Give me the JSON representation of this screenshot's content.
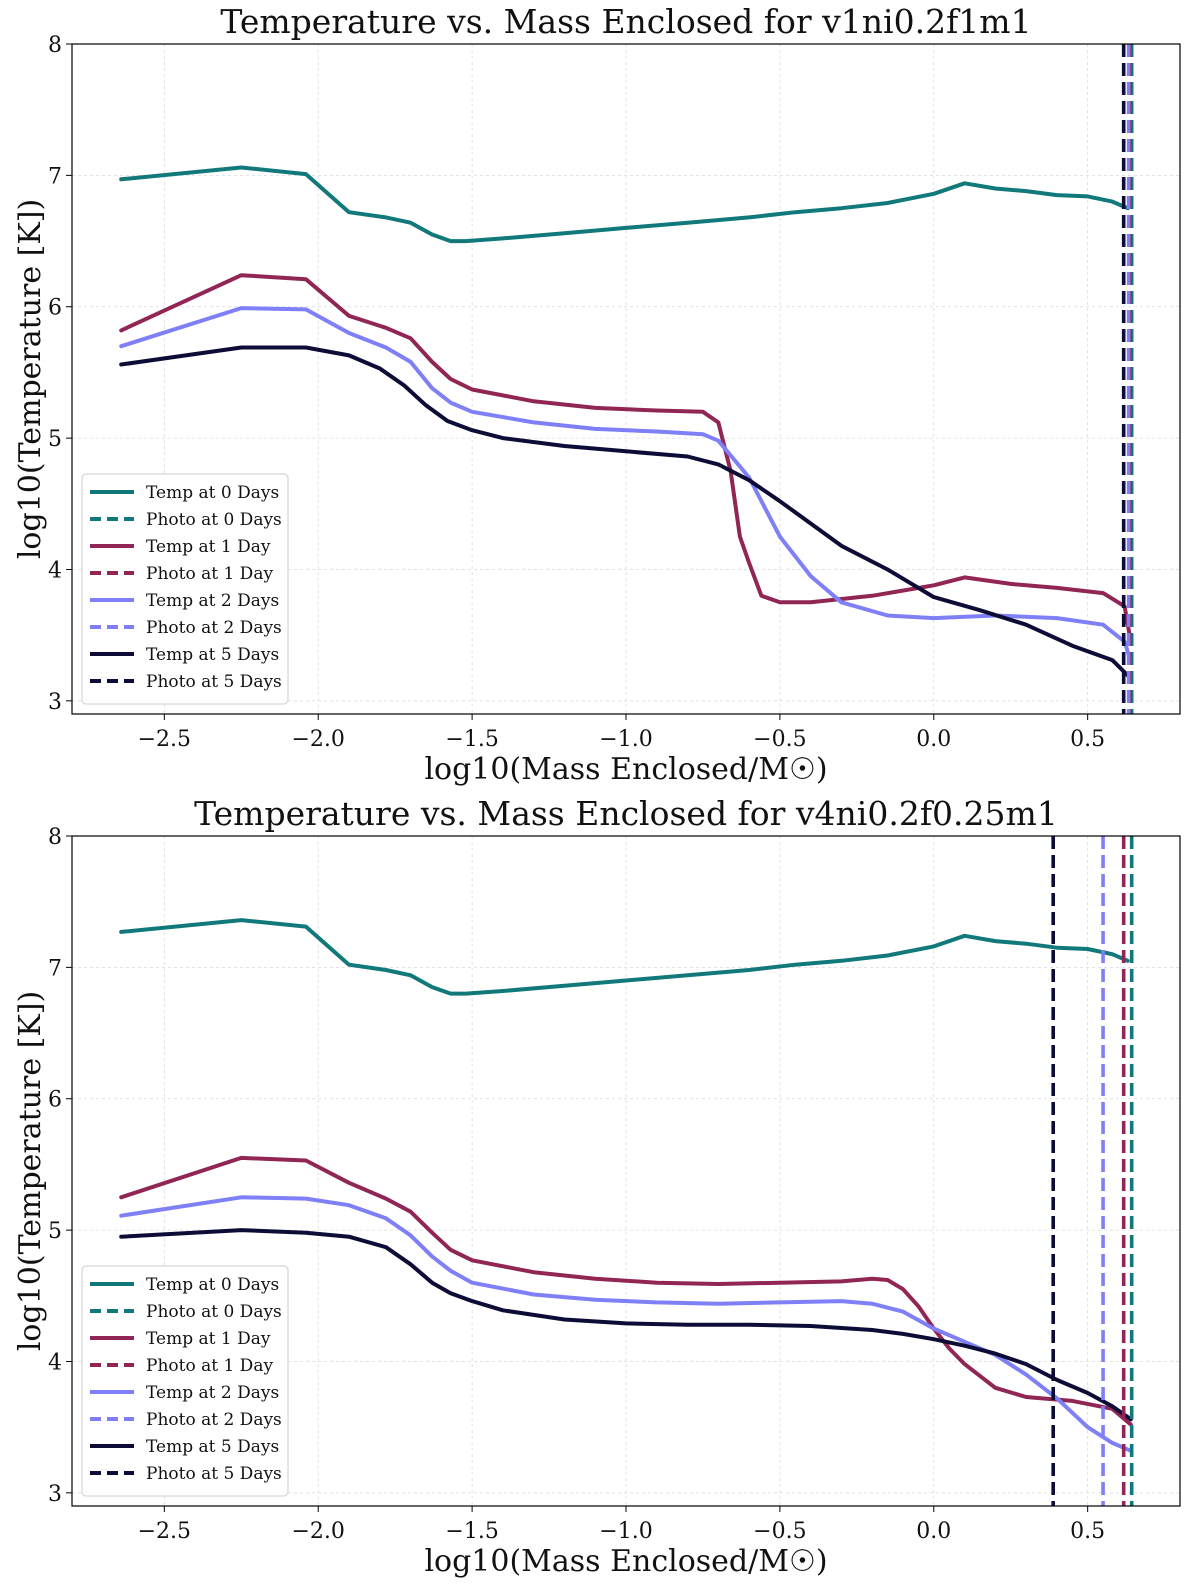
{
  "chart_data": [
    {
      "type": "line",
      "title": "Temperature vs. Mass Enclosed for v1ni0.2f1m1",
      "xlabel": "log10(Mass Enclosed/M☉)",
      "ylabel": "log10(Temperature [K])",
      "xlim": [
        -2.8,
        0.8
      ],
      "ylim": [
        2.9,
        8.0
      ],
      "xticks": [
        -2.5,
        -2.0,
        -1.5,
        -1.0,
        -0.5,
        0.0,
        0.5
      ],
      "xtick_labels": [
        "−2.5",
        "−2.0",
        "−1.5",
        "−1.0",
        "−0.5",
        "0.0",
        "0.5"
      ],
      "yticks": [
        3,
        4,
        5,
        6,
        7,
        8
      ],
      "ytick_labels": [
        "3",
        "4",
        "5",
        "6",
        "7",
        "8"
      ],
      "grid": true,
      "legend_position": "lower-left",
      "legend": [
        "Temp at 0 Days",
        "Photo at 0 Days",
        "Temp at 1 Day",
        "Photo at 1 Day",
        "Temp at 2 Days",
        "Photo at 2 Days",
        "Temp at 5 Days",
        "Photo at 5 Days"
      ],
      "series": [
        {
          "name": "Temp at 0 Days",
          "color": "#12797a",
          "style": "solid",
          "x": [
            -2.64,
            -2.25,
            -2.04,
            -1.9,
            -1.78,
            -1.7,
            -1.63,
            -1.57,
            -1.52,
            -1.4,
            -1.2,
            -1.0,
            -0.8,
            -0.6,
            -0.45,
            -0.3,
            -0.15,
            0.0,
            0.1,
            0.2,
            0.3,
            0.4,
            0.5,
            0.58,
            0.63
          ],
          "y": [
            6.97,
            7.06,
            7.01,
            6.72,
            6.68,
            6.64,
            6.55,
            6.5,
            6.5,
            6.52,
            6.56,
            6.6,
            6.64,
            6.68,
            6.72,
            6.75,
            6.79,
            6.86,
            6.94,
            6.9,
            6.88,
            6.85,
            6.84,
            6.8,
            6.75
          ]
        },
        {
          "name": "Temp at 1 Day",
          "color": "#912655",
          "style": "solid",
          "x": [
            -2.64,
            -2.25,
            -2.04,
            -1.9,
            -1.78,
            -1.7,
            -1.63,
            -1.57,
            -1.5,
            -1.3,
            -1.1,
            -0.9,
            -0.75,
            -0.7,
            -0.66,
            -0.63,
            -0.6,
            -0.56,
            -0.5,
            -0.4,
            -0.2,
            0.0,
            0.1,
            0.25,
            0.4,
            0.55,
            0.62,
            0.64
          ],
          "y": [
            5.82,
            6.24,
            6.21,
            5.93,
            5.84,
            5.76,
            5.58,
            5.45,
            5.37,
            5.28,
            5.23,
            5.21,
            5.2,
            5.12,
            4.75,
            4.25,
            4.05,
            3.8,
            3.75,
            3.75,
            3.8,
            3.88,
            3.94,
            3.89,
            3.86,
            3.82,
            3.72,
            3.45
          ]
        },
        {
          "name": "Temp at 2 Days",
          "color": "#7f7ff7",
          "style": "solid",
          "x": [
            -2.64,
            -2.25,
            -2.04,
            -1.9,
            -1.78,
            -1.7,
            -1.63,
            -1.57,
            -1.5,
            -1.3,
            -1.1,
            -0.9,
            -0.75,
            -0.7,
            -0.6,
            -0.5,
            -0.4,
            -0.3,
            -0.15,
            0.0,
            0.2,
            0.4,
            0.55,
            0.62,
            0.64
          ],
          "y": [
            5.7,
            5.99,
            5.98,
            5.8,
            5.69,
            5.58,
            5.38,
            5.27,
            5.2,
            5.12,
            5.07,
            5.05,
            5.03,
            4.98,
            4.7,
            4.25,
            3.95,
            3.75,
            3.65,
            3.63,
            3.65,
            3.63,
            3.58,
            3.45,
            3.3
          ]
        },
        {
          "name": "Temp at 5 Days",
          "color": "#0c0c36",
          "style": "solid",
          "x": [
            -2.64,
            -2.25,
            -2.04,
            -1.9,
            -1.8,
            -1.72,
            -1.65,
            -1.58,
            -1.5,
            -1.4,
            -1.2,
            -1.0,
            -0.8,
            -0.7,
            -0.6,
            -0.5,
            -0.4,
            -0.3,
            -0.15,
            0.0,
            0.15,
            0.3,
            0.45,
            0.58,
            0.64
          ],
          "y": [
            5.56,
            5.69,
            5.69,
            5.63,
            5.53,
            5.4,
            5.25,
            5.13,
            5.06,
            5.0,
            4.94,
            4.9,
            4.86,
            4.8,
            4.68,
            4.52,
            4.35,
            4.18,
            4.0,
            3.79,
            3.69,
            3.58,
            3.42,
            3.31,
            3.17
          ]
        }
      ],
      "vlines": [
        {
          "name": "Photo at 0 Days",
          "color": "#12797a",
          "style": "dashed",
          "x": 0.643
        },
        {
          "name": "Photo at 1 Day",
          "color": "#912655",
          "style": "dashed",
          "x": 0.636
        },
        {
          "name": "Photo at 2 Days",
          "color": "#7f7ff7",
          "style": "dashed",
          "x": 0.633
        },
        {
          "name": "Photo at 5 Days",
          "color": "#0c0c36",
          "style": "dashed",
          "x": 0.617
        }
      ]
    },
    {
      "type": "line",
      "title": "Temperature vs. Mass Enclosed for v4ni0.2f0.25m1",
      "xlabel": "log10(Mass Enclosed/M☉)",
      "ylabel": "log10(Temperature [K])",
      "xlim": [
        -2.8,
        0.8
      ],
      "ylim": [
        2.9,
        8.0
      ],
      "xticks": [
        -2.5,
        -2.0,
        -1.5,
        -1.0,
        -0.5,
        0.0,
        0.5
      ],
      "xtick_labels": [
        "−2.5",
        "−2.0",
        "−1.5",
        "−1.0",
        "−0.5",
        "0.0",
        "0.5"
      ],
      "yticks": [
        3,
        4,
        5,
        6,
        7,
        8
      ],
      "ytick_labels": [
        "3",
        "4",
        "5",
        "6",
        "7",
        "8"
      ],
      "grid": true,
      "legend_position": "lower-left",
      "legend": [
        "Temp at 0 Days",
        "Photo at 0 Days",
        "Temp at 1 Day",
        "Photo at 1 Day",
        "Temp at 2 Days",
        "Photo at 2 Days",
        "Temp at 5 Days",
        "Photo at 5 Days"
      ],
      "series": [
        {
          "name": "Temp at 0 Days",
          "color": "#12797a",
          "style": "solid",
          "x": [
            -2.64,
            -2.25,
            -2.04,
            -1.9,
            -1.78,
            -1.7,
            -1.63,
            -1.57,
            -1.52,
            -1.4,
            -1.2,
            -1.0,
            -0.8,
            -0.6,
            -0.45,
            -0.3,
            -0.15,
            0.0,
            0.1,
            0.2,
            0.3,
            0.4,
            0.5,
            0.58,
            0.63
          ],
          "y": [
            7.27,
            7.36,
            7.31,
            7.02,
            6.98,
            6.94,
            6.85,
            6.8,
            6.8,
            6.82,
            6.86,
            6.9,
            6.94,
            6.98,
            7.02,
            7.05,
            7.09,
            7.16,
            7.24,
            7.2,
            7.18,
            7.15,
            7.14,
            7.1,
            7.05
          ]
        },
        {
          "name": "Temp at 1 Day",
          "color": "#912655",
          "style": "solid",
          "x": [
            -2.64,
            -2.25,
            -2.04,
            -1.9,
            -1.78,
            -1.7,
            -1.63,
            -1.57,
            -1.5,
            -1.3,
            -1.1,
            -0.9,
            -0.7,
            -0.5,
            -0.3,
            -0.2,
            -0.15,
            -0.1,
            -0.05,
            0.0,
            0.05,
            0.1,
            0.2,
            0.3,
            0.45,
            0.58,
            0.64
          ],
          "y": [
            5.25,
            5.55,
            5.53,
            5.36,
            5.24,
            5.14,
            4.98,
            4.85,
            4.77,
            4.68,
            4.63,
            4.6,
            4.59,
            4.6,
            4.61,
            4.63,
            4.62,
            4.55,
            4.42,
            4.25,
            4.1,
            3.98,
            3.8,
            3.73,
            3.7,
            3.64,
            3.52
          ]
        },
        {
          "name": "Temp at 2 Days",
          "color": "#7f7ff7",
          "style": "solid",
          "x": [
            -2.64,
            -2.25,
            -2.04,
            -1.9,
            -1.78,
            -1.7,
            -1.63,
            -1.57,
            -1.5,
            -1.3,
            -1.1,
            -0.9,
            -0.7,
            -0.5,
            -0.3,
            -0.2,
            -0.1,
            0.0,
            0.1,
            0.2,
            0.3,
            0.4,
            0.5,
            0.58,
            0.64
          ],
          "y": [
            5.11,
            5.25,
            5.24,
            5.19,
            5.09,
            4.96,
            4.8,
            4.69,
            4.6,
            4.51,
            4.47,
            4.45,
            4.44,
            4.45,
            4.46,
            4.44,
            4.38,
            4.25,
            4.15,
            4.05,
            3.9,
            3.72,
            3.5,
            3.38,
            3.32
          ]
        },
        {
          "name": "Temp at 5 Days",
          "color": "#0c0c36",
          "style": "solid",
          "x": [
            -2.64,
            -2.25,
            -2.04,
            -1.9,
            -1.78,
            -1.7,
            -1.63,
            -1.57,
            -1.5,
            -1.4,
            -1.2,
            -1.0,
            -0.8,
            -0.6,
            -0.4,
            -0.2,
            -0.1,
            0.0,
            0.1,
            0.2,
            0.3,
            0.4,
            0.5,
            0.58,
            0.64
          ],
          "y": [
            4.95,
            5.0,
            4.98,
            4.95,
            4.87,
            4.74,
            4.6,
            4.52,
            4.46,
            4.39,
            4.32,
            4.29,
            4.28,
            4.28,
            4.27,
            4.24,
            4.21,
            4.17,
            4.12,
            4.06,
            3.98,
            3.86,
            3.76,
            3.66,
            3.56
          ]
        }
      ],
      "vlines": [
        {
          "name": "Photo at 0 Days",
          "color": "#12797a",
          "style": "dashed",
          "x": 0.643
        },
        {
          "name": "Photo at 1 Day",
          "color": "#912655",
          "style": "dashed",
          "x": 0.617
        },
        {
          "name": "Photo at 2 Days",
          "color": "#7f7ff7",
          "style": "dashed",
          "x": 0.55
        },
        {
          "name": "Photo at 5 Days",
          "color": "#0c0c36",
          "style": "dashed",
          "x": 0.388
        }
      ]
    }
  ]
}
